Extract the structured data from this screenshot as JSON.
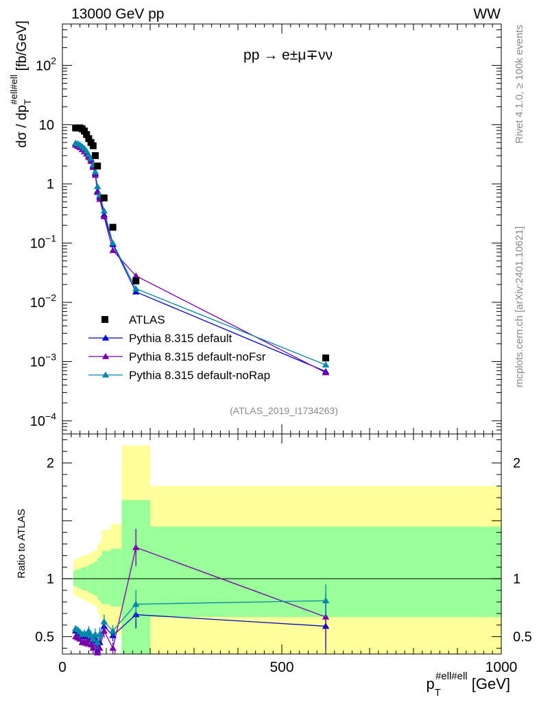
{
  "header": {
    "left": "13000 GeV pp",
    "right": "WW"
  },
  "chart_data": {
    "type": "scatter",
    "title": "pp → e±μ∓νν",
    "analysis_label": "(ATLAS_2019_I1734263)",
    "side_text_top": "Rivet 4.1.0, ≥ 100k events",
    "side_text_bottom": "mcplots.cern.ch [arXiv:2401.10621]",
    "ylabel": "dσ / dp_T^{#ell#ell} [fb/GeV]",
    "ylabel_main": "dσ / dp",
    "ylabel_sub": "T",
    "ylabel_sup": "#ell#ell",
    "ylabel_unit": " [fb/GeV]",
    "ratio_ylabel": "Ratio to ATLAS",
    "xlabel": "p_T^{#ell#ell} [GeV]",
    "xlabel_main": "p",
    "xlabel_sub": "T",
    "xlabel_sup": "#ell#ell",
    "xlabel_unit": " [GeV]",
    "xlim": [
      0,
      1000
    ],
    "ylim_log": [
      6e-05,
      500
    ],
    "ratio_ylim": [
      0.35,
      2.25
    ],
    "x_ticks": [
      "0",
      "500",
      "1000"
    ],
    "y_ticks_main": [
      {
        "base": "10",
        "exp": "2",
        "v": 100
      },
      {
        "base": "10",
        "exp": "",
        "v": 10
      },
      {
        "base": "1",
        "exp": "",
        "v": 1
      },
      {
        "base": "10",
        "exp": "−1",
        "v": 0.1
      },
      {
        "base": "10",
        "exp": "−2",
        "v": 0.01
      },
      {
        "base": "10",
        "exp": "−3",
        "v": 0.001
      },
      {
        "base": "10",
        "exp": "−4",
        "v": 0.0001
      }
    ],
    "y_ticks_ratio": [
      "0.5",
      "1",
      "2"
    ],
    "y_ticks_ratio_vals": [
      0.5,
      1,
      2
    ],
    "data": {
      "name": "ATLAS",
      "x": [
        30,
        35,
        40,
        45,
        50,
        55,
        60,
        65,
        70,
        75,
        80,
        85,
        95,
        115,
        167.5,
        600
      ],
      "y": [
        8.8,
        8.8,
        8.8,
        8.5,
        7.8,
        6.8,
        5.8,
        5.0,
        4.4,
        3.0,
        2.0,
        null,
        0.58,
        0.185,
        0.023,
        0.00115
      ]
    },
    "bands": {
      "edges": [
        25,
        30,
        35,
        40,
        45,
        50,
        55,
        60,
        65,
        70,
        75,
        80,
        85,
        90,
        110,
        135,
        200,
        1000
      ],
      "green_lo": [
        0.94,
        0.93,
        0.92,
        0.91,
        0.9,
        0.9,
        0.89,
        0.88,
        0.87,
        0.86,
        0.85,
        0.82,
        0.8,
        0.78,
        0.76,
        0.35,
        0.67
      ],
      "green_hi": [
        1.07,
        1.08,
        1.08,
        1.09,
        1.1,
        1.1,
        1.11,
        1.12,
        1.13,
        1.14,
        1.15,
        1.18,
        1.2,
        1.24,
        1.26,
        1.68,
        1.45
      ],
      "yellow_lo": [
        0.86,
        0.85,
        0.84,
        0.83,
        0.82,
        0.81,
        0.8,
        0.79,
        0.78,
        0.77,
        0.76,
        0.7,
        0.66,
        0.6,
        0.52,
        0.35,
        0.35
      ],
      "yellow_hi": [
        1.16,
        1.17,
        1.18,
        1.19,
        1.2,
        1.2,
        1.21,
        1.22,
        1.23,
        1.24,
        1.25,
        1.3,
        1.33,
        1.42,
        1.47,
        2.15,
        1.8
      ],
      "colors": {
        "green": "#99ff99",
        "yellow": "#ffff99"
      }
    },
    "series": [
      {
        "name": "Pythia 8.315 default",
        "color": "#0000cc",
        "x": [
          30,
          35,
          40,
          45,
          50,
          55,
          60,
          65,
          70,
          75,
          80,
          85,
          95,
          115,
          167.5,
          600
        ],
        "y": [
          4.8,
          4.7,
          4.5,
          4.2,
          3.9,
          3.5,
          3.0,
          2.6,
          2.0,
          1.5,
          0.75,
          0.6,
          0.3,
          0.095,
          0.015,
          0.00068
        ],
        "ratio": [
          0.55,
          0.53,
          0.52,
          0.5,
          0.52,
          0.5,
          0.52,
          0.49,
          0.45,
          0.48,
          0.38,
          0.45,
          0.59,
          0.51,
          0.69,
          0.59
        ],
        "ratio_err": [
          0.03,
          0.03,
          0.03,
          0.03,
          0.03,
          0.03,
          0.04,
          0.04,
          0.05,
          0.05,
          0.06,
          0.06,
          0.06,
          0.05,
          0.12,
          0.2
        ]
      },
      {
        "name": "Pythia 8.315 default-noFsr",
        "color": "#7700aa",
        "x": [
          30,
          35,
          40,
          45,
          50,
          55,
          60,
          65,
          70,
          75,
          80,
          85,
          95,
          115,
          167.5,
          600
        ],
        "y": [
          4.5,
          4.3,
          4.1,
          3.8,
          3.5,
          3.2,
          2.8,
          2.4,
          1.9,
          1.4,
          0.72,
          0.55,
          0.28,
          0.075,
          0.028,
          0.00065
        ],
        "ratio": [
          0.5,
          0.49,
          0.48,
          0.45,
          0.46,
          0.44,
          0.47,
          0.43,
          0.4,
          0.44,
          0.36,
          0.4,
          0.55,
          0.4,
          1.27,
          0.67
        ],
        "ratio_err": [
          0.03,
          0.03,
          0.03,
          0.03,
          0.03,
          0.03,
          0.04,
          0.04,
          0.05,
          0.05,
          0.06,
          0.06,
          0.06,
          0.05,
          0.16,
          0.2
        ]
      },
      {
        "name": "Pythia 8.315 default-noRap",
        "color": "#0088aa",
        "x": [
          30,
          35,
          40,
          45,
          50,
          55,
          60,
          65,
          70,
          75,
          80,
          85,
          95,
          115,
          167.5,
          600
        ],
        "y": [
          4.9,
          4.8,
          4.6,
          4.3,
          4.0,
          3.6,
          3.1,
          2.7,
          2.1,
          1.6,
          0.9,
          0.65,
          0.35,
          0.1,
          0.017,
          0.00088
        ],
        "ratio": [
          0.57,
          0.56,
          0.54,
          0.52,
          0.53,
          0.52,
          0.55,
          0.51,
          0.48,
          0.52,
          0.45,
          0.52,
          0.63,
          0.55,
          0.78,
          0.81
        ],
        "ratio_err": [
          0.03,
          0.03,
          0.03,
          0.03,
          0.03,
          0.03,
          0.04,
          0.04,
          0.05,
          0.05,
          0.06,
          0.06,
          0.06,
          0.05,
          0.12,
          0.14
        ]
      }
    ],
    "legend": [
      {
        "label": "ATLAS",
        "marker": "square",
        "color": "#000000"
      },
      {
        "label": "Pythia 8.315 default",
        "marker": "triangle",
        "color": "#0000cc"
      },
      {
        "label": "Pythia 8.315 default-noFsr",
        "marker": "triangle",
        "color": "#7700aa"
      },
      {
        "label": "Pythia 8.315 default-noRap",
        "marker": "triangle",
        "color": "#0088aa"
      }
    ]
  }
}
